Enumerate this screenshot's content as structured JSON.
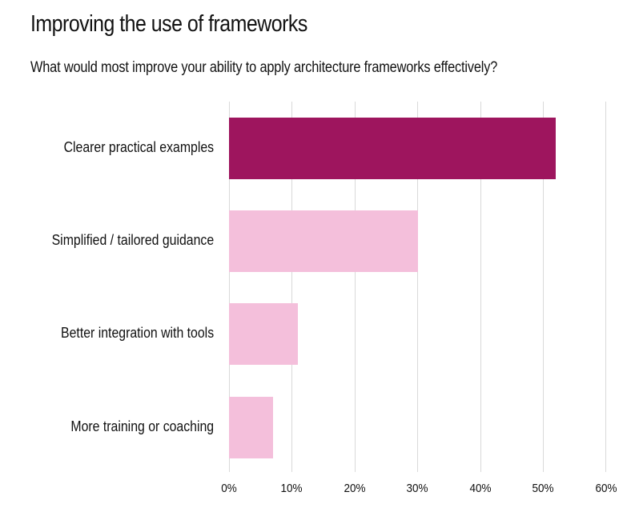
{
  "chart_data": {
    "type": "bar",
    "orientation": "horizontal",
    "title": "Improving the use of frameworks",
    "subtitle": "What would most improve your ability to apply architecture frameworks effectively?",
    "categories": [
      "Clearer practical examples",
      "Simplified / tailored guidance",
      "Better integration with tools",
      "More training or coaching"
    ],
    "values": [
      52,
      30,
      11,
      7
    ],
    "unit": "%",
    "xlabel": "",
    "ylabel": "",
    "xlim": [
      0,
      60
    ],
    "xticks": [
      "0%",
      "10%",
      "20%",
      "30%",
      "40%",
      "50%",
      "60%"
    ],
    "grid": "vertical",
    "legend": "none",
    "colors": {
      "highlight": "#9e155e",
      "default": "#f4bfdb",
      "gridline": "#d9d9d9"
    },
    "highlighted_index": 0
  }
}
